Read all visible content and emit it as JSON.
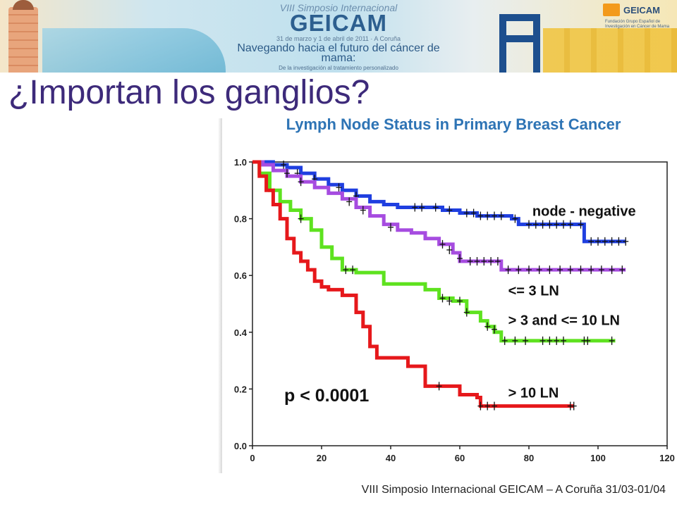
{
  "banner": {
    "edition": "VIII Simposio Internacional",
    "brand": "GEICAM",
    "dates": "31 de marzo y 1 de abril de 2011 · A Coruña",
    "tagline": "Navegando hacia el futuro del cáncer de mama:",
    "subtagline": "De la investigación al tratamiento personalizado",
    "logo_name": "GEICAM",
    "logo_sub": "Fundación Grupo Español de Investigación en Cáncer de Mama"
  },
  "slide": {
    "title": "¿Importan los ganglios?",
    "footer": "VIII Simposio Internacional GEICAM – A Coruña 31/03-01/04"
  },
  "chart_data": {
    "type": "line",
    "title": "Lymph Node Status in Primary Breast Cancer",
    "xlabel": "",
    "ylabel": "",
    "xlim": [
      0,
      120
    ],
    "ylim": [
      0,
      1.0
    ],
    "xticks": [
      "0",
      "20",
      "40",
      "60",
      "80",
      "100",
      "120"
    ],
    "yticks": [
      "0.0",
      "0.2",
      "0.4",
      "0.6",
      "0.8",
      "1.0"
    ],
    "annotation": "p < 0.0001",
    "series": [
      {
        "name": "node - negative",
        "color": "#1f3fe0",
        "points": [
          [
            0,
            1.0
          ],
          [
            3,
            1.0
          ],
          [
            6,
            0.99
          ],
          [
            10,
            0.98
          ],
          [
            14,
            0.96
          ],
          [
            18,
            0.94
          ],
          [
            22,
            0.92
          ],
          [
            26,
            0.9
          ],
          [
            30,
            0.88
          ],
          [
            34,
            0.86
          ],
          [
            38,
            0.85
          ],
          [
            42,
            0.84
          ],
          [
            50,
            0.84
          ],
          [
            55,
            0.83
          ],
          [
            60,
            0.82
          ],
          [
            65,
            0.81
          ],
          [
            75,
            0.8
          ],
          [
            77,
            0.78
          ],
          [
            85,
            0.78
          ],
          [
            96,
            0.78
          ],
          [
            96,
            0.72
          ],
          [
            108,
            0.72
          ]
        ],
        "censored": [
          [
            9,
            0.99
          ],
          [
            13,
            0.96
          ],
          [
            18,
            0.94
          ],
          [
            25,
            0.91
          ],
          [
            30,
            0.88
          ],
          [
            47,
            0.84
          ],
          [
            49,
            0.84
          ],
          [
            53,
            0.84
          ],
          [
            57,
            0.83
          ],
          [
            62,
            0.82
          ],
          [
            64,
            0.82
          ],
          [
            66,
            0.81
          ],
          [
            68,
            0.81
          ],
          [
            70,
            0.81
          ],
          [
            72,
            0.81
          ],
          [
            76,
            0.8
          ],
          [
            80,
            0.78
          ],
          [
            82,
            0.78
          ],
          [
            84,
            0.78
          ],
          [
            86,
            0.78
          ],
          [
            88,
            0.78
          ],
          [
            90,
            0.78
          ],
          [
            92,
            0.78
          ],
          [
            95,
            0.78
          ],
          [
            98,
            0.72
          ],
          [
            100,
            0.72
          ],
          [
            102,
            0.72
          ],
          [
            104,
            0.72
          ],
          [
            106,
            0.72
          ],
          [
            108,
            0.72
          ]
        ]
      },
      {
        "name": "<= 3 LN",
        "color": "#a64ce0",
        "points": [
          [
            0,
            1.0
          ],
          [
            3,
            0.99
          ],
          [
            6,
            0.97
          ],
          [
            10,
            0.95
          ],
          [
            14,
            0.93
          ],
          [
            18,
            0.91
          ],
          [
            22,
            0.89
          ],
          [
            26,
            0.87
          ],
          [
            30,
            0.84
          ],
          [
            34,
            0.81
          ],
          [
            38,
            0.78
          ],
          [
            42,
            0.76
          ],
          [
            46,
            0.75
          ],
          [
            50,
            0.73
          ],
          [
            54,
            0.71
          ],
          [
            58,
            0.68
          ],
          [
            60,
            0.65
          ],
          [
            65,
            0.65
          ],
          [
            72,
            0.65
          ],
          [
            72,
            0.62
          ],
          [
            108,
            0.62
          ]
        ],
        "censored": [
          [
            10,
            0.96
          ],
          [
            14,
            0.93
          ],
          [
            28,
            0.86
          ],
          [
            32,
            0.83
          ],
          [
            40,
            0.77
          ],
          [
            55,
            0.71
          ],
          [
            57,
            0.69
          ],
          [
            60,
            0.66
          ],
          [
            63,
            0.65
          ],
          [
            65,
            0.65
          ],
          [
            67,
            0.65
          ],
          [
            69,
            0.65
          ],
          [
            71,
            0.65
          ],
          [
            74,
            0.62
          ],
          [
            77,
            0.62
          ],
          [
            80,
            0.62
          ],
          [
            83,
            0.62
          ],
          [
            86,
            0.62
          ],
          [
            89,
            0.62
          ],
          [
            92,
            0.62
          ],
          [
            95,
            0.62
          ],
          [
            98,
            0.62
          ],
          [
            101,
            0.62
          ],
          [
            104,
            0.62
          ],
          [
            107,
            0.62
          ]
        ]
      },
      {
        "name": "> 3 and <= 10 LN",
        "color": "#5ee21f",
        "points": [
          [
            0,
            1.0
          ],
          [
            2,
            0.96
          ],
          [
            5,
            0.9
          ],
          [
            8,
            0.86
          ],
          [
            11,
            0.83
          ],
          [
            14,
            0.8
          ],
          [
            17,
            0.76
          ],
          [
            20,
            0.7
          ],
          [
            23,
            0.66
          ],
          [
            26,
            0.62
          ],
          [
            30,
            0.61
          ],
          [
            35,
            0.61
          ],
          [
            38,
            0.57
          ],
          [
            44,
            0.57
          ],
          [
            50,
            0.55
          ],
          [
            54,
            0.52
          ],
          [
            58,
            0.51
          ],
          [
            62,
            0.47
          ],
          [
            66,
            0.44
          ],
          [
            68,
            0.42
          ],
          [
            70,
            0.4
          ],
          [
            72,
            0.37
          ],
          [
            75,
            0.37
          ],
          [
            105,
            0.37
          ]
        ],
        "censored": [
          [
            14,
            0.8
          ],
          [
            27,
            0.62
          ],
          [
            29,
            0.62
          ],
          [
            55,
            0.52
          ],
          [
            57,
            0.51
          ],
          [
            60,
            0.51
          ],
          [
            62,
            0.47
          ],
          [
            68,
            0.42
          ],
          [
            70,
            0.41
          ],
          [
            73,
            0.37
          ],
          [
            76,
            0.37
          ],
          [
            79,
            0.37
          ],
          [
            84,
            0.37
          ],
          [
            86,
            0.37
          ],
          [
            88,
            0.37
          ],
          [
            90,
            0.37
          ],
          [
            96,
            0.37
          ],
          [
            97,
            0.37
          ],
          [
            104,
            0.37
          ]
        ]
      },
      {
        "name": "> 10 LN",
        "color": "#e6181b",
        "points": [
          [
            0,
            1.0
          ],
          [
            2,
            0.95
          ],
          [
            4,
            0.9
          ],
          [
            6,
            0.85
          ],
          [
            8,
            0.8
          ],
          [
            10,
            0.73
          ],
          [
            12,
            0.68
          ],
          [
            14,
            0.65
          ],
          [
            16,
            0.62
          ],
          [
            18,
            0.58
          ],
          [
            20,
            0.56
          ],
          [
            22,
            0.55
          ],
          [
            26,
            0.53
          ],
          [
            30,
            0.47
          ],
          [
            32,
            0.42
          ],
          [
            34,
            0.35
          ],
          [
            36,
            0.31
          ],
          [
            40,
            0.31
          ],
          [
            45,
            0.28
          ],
          [
            50,
            0.21
          ],
          [
            55,
            0.21
          ],
          [
            60,
            0.18
          ],
          [
            65,
            0.17
          ],
          [
            66,
            0.14
          ],
          [
            70,
            0.14
          ],
          [
            93,
            0.14
          ]
        ],
        "censored": [
          [
            54,
            0.21
          ],
          [
            66,
            0.14
          ],
          [
            68,
            0.14
          ],
          [
            70,
            0.14
          ],
          [
            92,
            0.14
          ],
          [
            93,
            0.14
          ]
        ]
      }
    ],
    "series_labels": [
      "node - negative",
      "<= 3 LN",
      "> 3 and <= 10 LN",
      "> 10 LN"
    ]
  }
}
